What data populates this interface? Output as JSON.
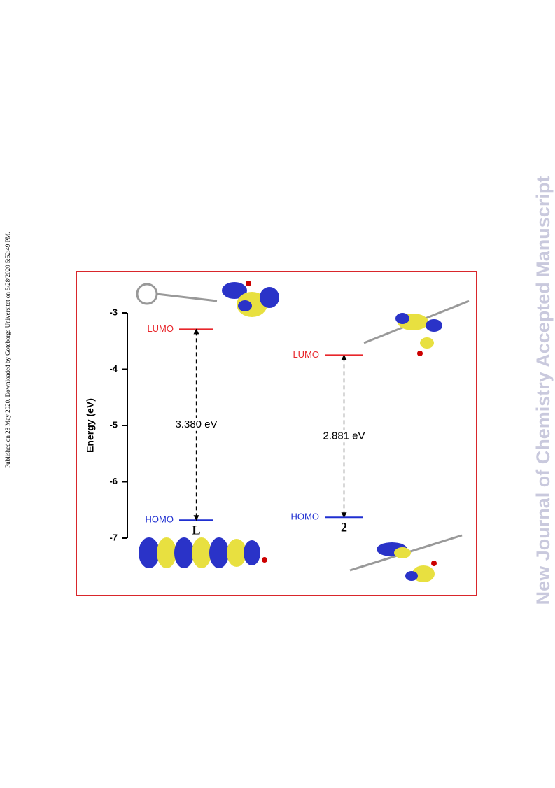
{
  "side_note": "Published on 28 May 2020. Downloaded by Goteborgs Universitet on 5/28/2020 5:52:49 PM.",
  "watermark": "New Journal of Chemistry Accepted Manuscript",
  "chart_data": {
    "type": "energy-level",
    "ylabel": "Energy (eV)",
    "ylim": [
      -7,
      -3
    ],
    "yticks": [
      -3,
      -4,
      -5,
      -6,
      -7
    ],
    "lumo_label": "LUMO",
    "homo_label": "HOMO",
    "lumo_color": "#e8262b",
    "homo_color": "#1f2fd1",
    "series": [
      {
        "name": "L",
        "lumo": -3.29,
        "homo": -6.68,
        "gap_label": "3.380 eV"
      },
      {
        "name": "2",
        "lumo": -3.75,
        "homo": -6.63,
        "gap_label": "2.881 eV"
      }
    ]
  }
}
